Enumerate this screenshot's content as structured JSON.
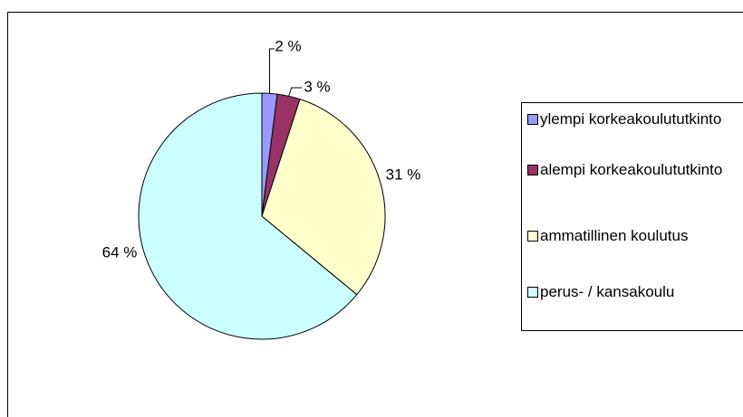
{
  "chart_data": {
    "type": "pie",
    "categories": [
      "ylempi korkeakoulututkinto",
      "alempi korkeakoulututkinto",
      "ammatillinen koulutus",
      "perus- / kansakoulu"
    ],
    "values": [
      2,
      3,
      31,
      64
    ],
    "value_labels": [
      "2 %",
      "3 %",
      "31 %",
      "64 %"
    ],
    "colors": [
      "#9999ff",
      "#993366",
      "#ffffcc",
      "#ccffff"
    ],
    "legend": "right"
  }
}
